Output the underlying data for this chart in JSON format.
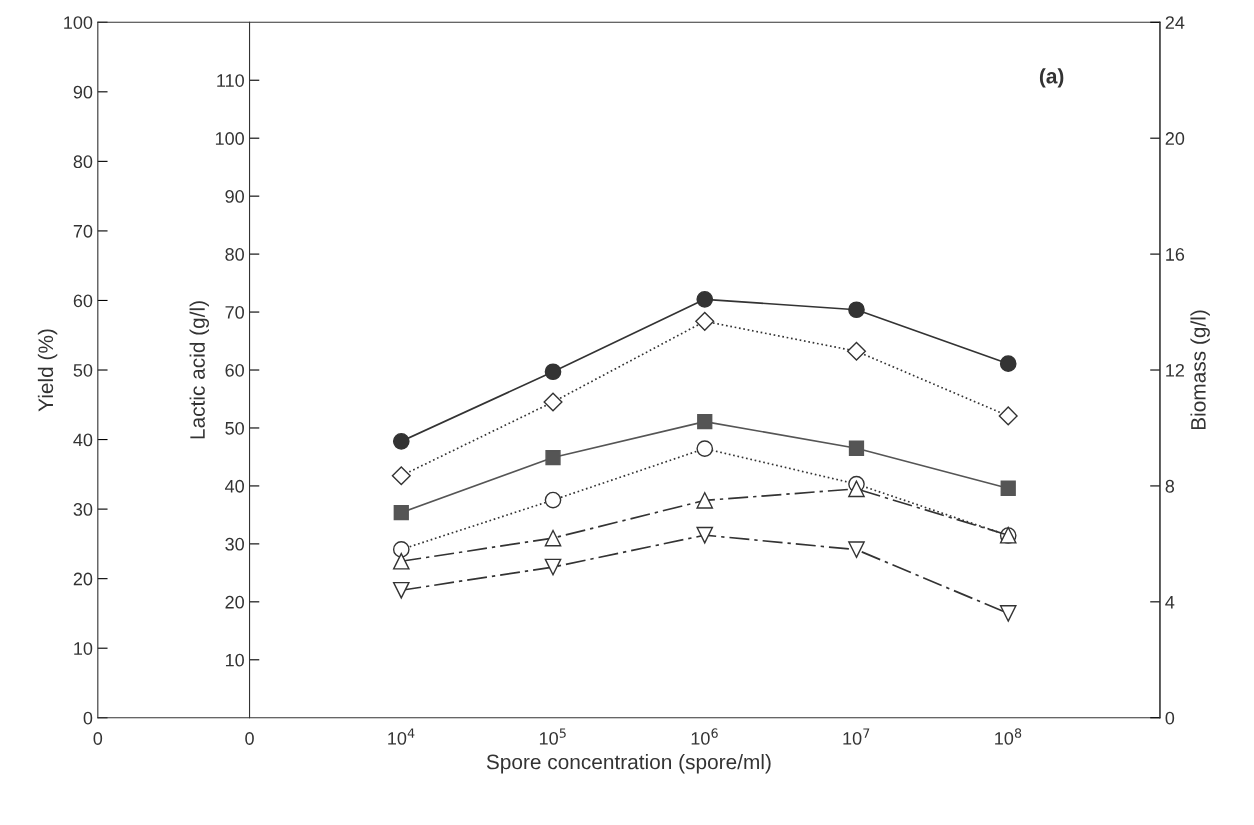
{
  "chart_data": {
    "type": "line",
    "xlabel": "Spore concentration (spore/ml)",
    "ylabel": "Yield (%)",
    "y2label": "Lactic acid (g/l)",
    "y3label": "Biomass (g/l)",
    "annotations": [
      "(a)"
    ],
    "categories": [
      "0",
      "0",
      "10$^{4}$",
      "10$^{5}$",
      "10$^{6}$",
      "10$^{7}$",
      "10$^{8}$"
    ],
    "ylim": [
      0,
      100
    ],
    "yticks": [
      0,
      10,
      20,
      30,
      40,
      50,
      60,
      70,
      80,
      90,
      100
    ],
    "y2lim": [
      0,
      120
    ],
    "y2ticks": [
      10,
      20,
      30,
      40,
      50,
      60,
      70,
      80,
      90,
      100,
      110
    ],
    "y3lim": [
      0,
      24
    ],
    "y3ticks": [
      0,
      4,
      8,
      12,
      16,
      20,
      24
    ],
    "grid": false,
    "series": [
      {
        "axis": "y2",
        "color": "#333333",
        "marker": "circle",
        "line_style": "solid",
        "values": [
          null,
          null,
          47.7,
          59.7,
          72.2,
          70.4,
          61.1
        ]
      },
      {
        "axis": "y2",
        "color": "#555555",
        "marker": "square",
        "line_style": "solid",
        "values": [
          null,
          null,
          35.4,
          44.9,
          51.1,
          46.5,
          39.6
        ]
      },
      {
        "axis": "y",
        "color": "#333333",
        "marker": "diamond",
        "line_style": "dotted",
        "values": [
          null,
          null,
          34.8,
          45.4,
          57.0,
          52.7,
          43.4
        ]
      },
      {
        "axis": "y",
        "color": "#333333",
        "marker": "circle",
        "line_style": "dotted",
        "values": [
          null,
          null,
          24.2,
          31.3,
          38.7,
          33.6,
          26.2
        ]
      },
      {
        "axis": "y3",
        "color": "#333333",
        "marker": "triangle",
        "line_style": "dashdot",
        "values": [
          null,
          null,
          5.4,
          6.2,
          7.5,
          7.9,
          6.3
        ]
      },
      {
        "axis": "y3",
        "color": "#333333",
        "marker": "triangle-down",
        "line_style": "dashdot",
        "values": [
          null,
          null,
          4.4,
          5.2,
          6.3,
          5.8,
          3.6
        ]
      }
    ]
  }
}
